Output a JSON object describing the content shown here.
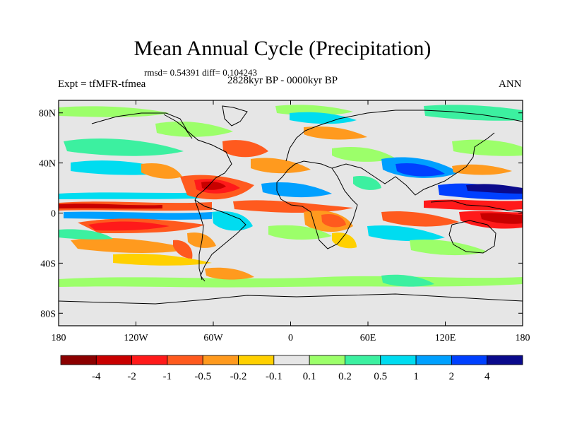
{
  "header": {
    "title": "Mean Annual Cycle (Precipitation)",
    "stats": "rmsd= 0.54391 diff= 0.104243",
    "experiment": "Expt = tfMFR-tfmea",
    "period": "2828kyr BP - 0000kyr BP",
    "season": "ANN"
  },
  "map": {
    "lat_ticks": [
      "80N",
      "40N",
      "0",
      "40S",
      "80S"
    ],
    "lat_values": [
      80,
      40,
      0,
      -40,
      -80
    ],
    "lon_ticks": [
      "180",
      "120W",
      "60W",
      "0",
      "60E",
      "120E",
      "180"
    ],
    "lon_values": [
      -180,
      -120,
      -60,
      0,
      60,
      120,
      180
    ]
  },
  "colorbar": {
    "colors": [
      "#8b0000",
      "#c80000",
      "#ff1a1a",
      "#ff5a1e",
      "#ff9a1e",
      "#ffd000",
      "#e6e6e6",
      "#9cff6a",
      "#3cf0a0",
      "#00dcf0",
      "#00a0ff",
      "#0040ff",
      "#0a0a8c"
    ],
    "labels": [
      "-4",
      "-2",
      "-1",
      "-0.5",
      "-0.2",
      "-0.1",
      "0.1",
      "0.2",
      "0.5",
      "1",
      "2",
      "4"
    ]
  },
  "palette": {
    "background": "#e6e6e6",
    "coastline": "#000000"
  }
}
